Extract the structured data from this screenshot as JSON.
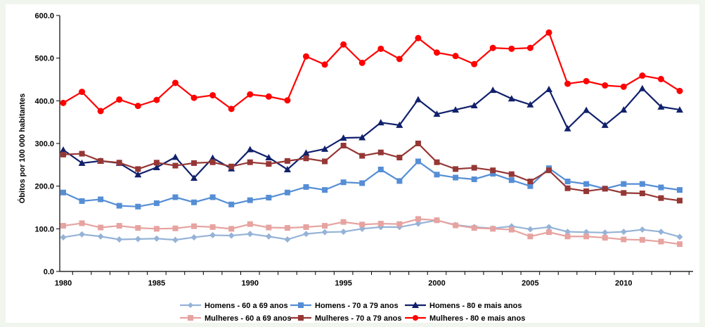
{
  "chart_data": {
    "type": "line",
    "title": "",
    "xlabel": "",
    "ylabel": "Óbitos por 100 000 habitantes",
    "xlim": [
      1980,
      2013
    ],
    "ylim": [
      0,
      600
    ],
    "y_ticks": [
      "0.0",
      "100.0",
      "200.0",
      "300.0",
      "400.0",
      "500.0",
      "600.0"
    ],
    "x_ticks": [
      "1980",
      "1985",
      "1990",
      "1995",
      "2000",
      "2005",
      "2010"
    ],
    "grid": false,
    "legend_position": "bottom",
    "x": [
      1980,
      1981,
      1982,
      1983,
      1984,
      1985,
      1986,
      1987,
      1988,
      1989,
      1990,
      1991,
      1992,
      1993,
      1994,
      1995,
      1996,
      1997,
      1998,
      1999,
      2000,
      2001,
      2002,
      2003,
      2004,
      2005,
      2006,
      2007,
      2008,
      2009,
      2010,
      2011,
      2012,
      2013
    ],
    "series": [
      {
        "name": "Homens - 60 a 69 anos",
        "color": "#95b3d7",
        "marker": "diamond",
        "values": [
          80,
          87,
          82,
          75,
          76,
          77,
          74,
          80,
          85,
          84,
          88,
          82,
          75,
          88,
          92,
          93,
          100,
          104,
          104,
          112,
          120,
          109,
          104,
          101,
          106,
          99,
          104,
          93,
          92,
          91,
          93,
          98,
          93,
          81
        ]
      },
      {
        "name": "Homens - 70 a 79 anos",
        "color": "#558ed5",
        "marker": "square",
        "values": [
          185,
          165,
          169,
          154,
          152,
          160,
          174,
          162,
          174,
          157,
          167,
          173,
          185,
          198,
          191,
          209,
          207,
          239,
          212,
          258,
          227,
          220,
          216,
          229,
          214,
          200,
          242,
          211,
          205,
          194,
          205,
          205,
          197,
          191
        ]
      },
      {
        "name": "Homens - 80 e mais anos",
        "color": "#10206b",
        "marker": "triangle",
        "values": [
          285,
          254,
          259,
          254,
          227,
          244,
          268,
          219,
          266,
          241,
          286,
          267,
          239,
          278,
          287,
          313,
          314,
          349,
          343,
          403,
          369,
          379,
          389,
          425,
          405,
          391,
          427,
          335,
          378,
          343,
          379,
          429,
          386,
          379
        ]
      },
      {
        "name": "Mulheres - 60 a 69 anos",
        "color": "#e6a3a0",
        "marker": "square",
        "values": [
          107,
          113,
          103,
          107,
          102,
          100,
          101,
          106,
          104,
          100,
          111,
          103,
          102,
          104,
          107,
          116,
          110,
          112,
          111,
          123,
          120,
          108,
          102,
          100,
          98,
          82,
          92,
          82,
          82,
          79,
          75,
          74,
          70,
          64
        ]
      },
      {
        "name": "Mulheres - 70 a 79 anos",
        "color": "#953735",
        "marker": "square",
        "values": [
          274,
          276,
          259,
          255,
          240,
          255,
          248,
          254,
          256,
          246,
          256,
          252,
          259,
          265,
          258,
          295,
          271,
          279,
          267,
          300,
          256,
          240,
          243,
          237,
          228,
          211,
          237,
          195,
          188,
          194,
          184,
          183,
          172,
          166
        ]
      },
      {
        "name": "Mulheres - 80 e mais anos",
        "color": "#ff0000",
        "marker": "circle",
        "values": [
          395,
          421,
          376,
          403,
          388,
          402,
          442,
          407,
          413,
          381,
          415,
          410,
          401,
          504,
          485,
          532,
          489,
          522,
          498,
          547,
          513,
          505,
          486,
          524,
          522,
          524,
          560,
          440,
          446,
          436,
          433,
          459,
          451,
          423
        ]
      }
    ]
  }
}
